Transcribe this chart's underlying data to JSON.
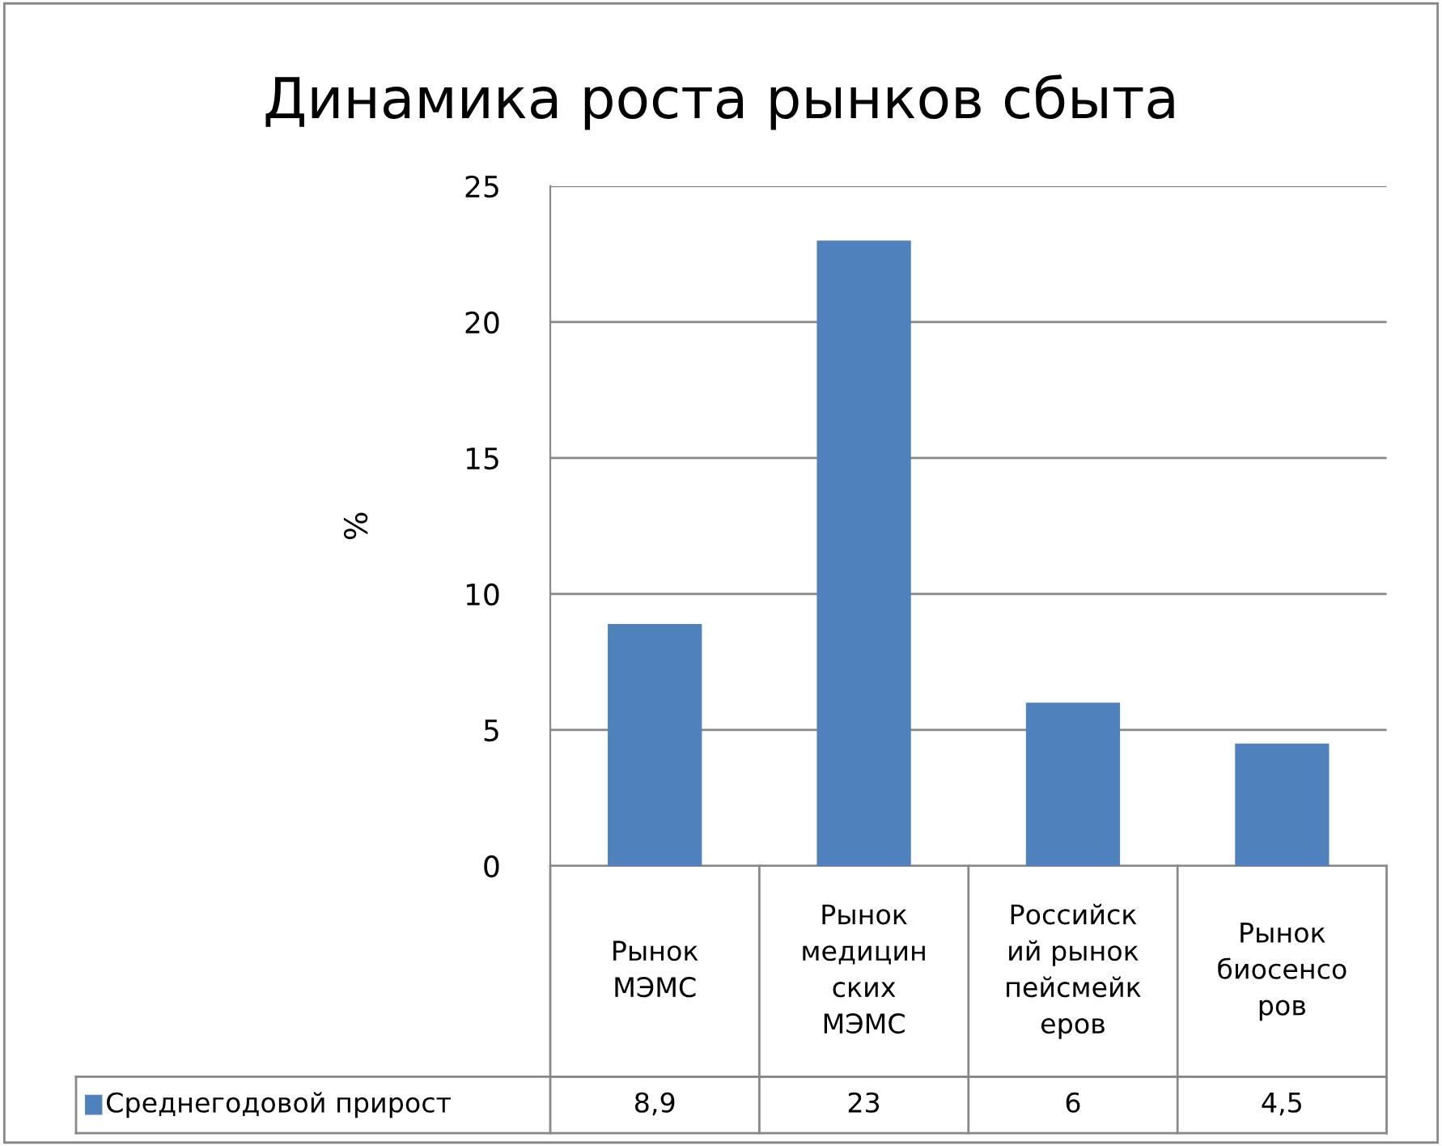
{
  "chart_data": {
    "type": "bar",
    "title": "Динамика роста рынков сбыта",
    "ylabel": "%",
    "categories": [
      "Рынок\nМЭМС",
      "Рынок\nмедицин\nских\nМЭМС",
      "Российск\nий рынок\nпейсмейк\nеров",
      "Рынок\nбиосенсо\nров"
    ],
    "series": [
      {
        "name": "Среднегодовой прирост",
        "color": "#4f81bd",
        "values": [
          8.9,
          23,
          6,
          4.5
        ],
        "value_labels": [
          "8,9",
          "23",
          "6",
          "4,5"
        ]
      }
    ],
    "ylim": [
      0,
      25
    ],
    "yticks": [
      0,
      5,
      10,
      15,
      20,
      25
    ],
    "grid": "y",
    "legend": "bottom left",
    "data_labels": true
  }
}
